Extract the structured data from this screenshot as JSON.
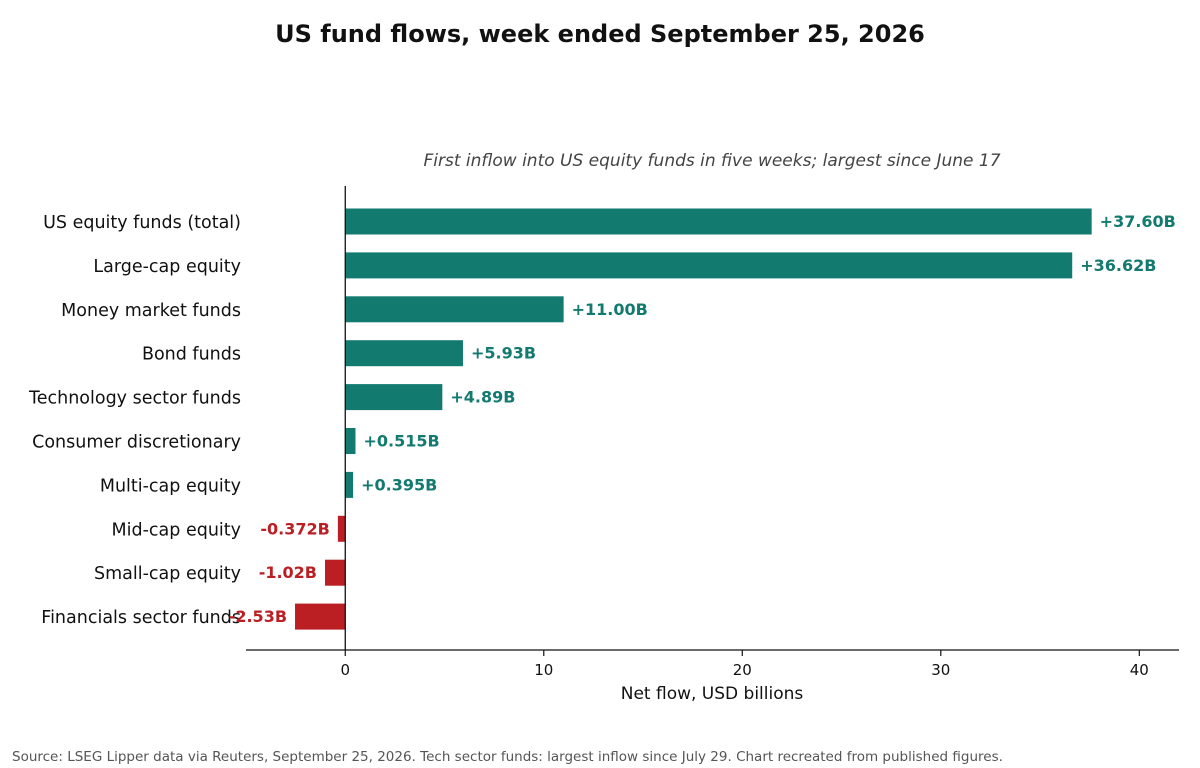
{
  "chart_data": {
    "type": "bar",
    "orientation": "horizontal",
    "title": "US fund flows, week ended September 25, 2026",
    "subtitle": "First inflow into US equity funds in five weeks; largest since June 17",
    "xlabel": "Net flow, USD billions",
    "ylabel": "",
    "xlim": [
      -5,
      42
    ],
    "xticks": [
      0,
      10,
      20,
      30,
      40
    ],
    "grid": false,
    "legend": "none",
    "categories": [
      "US equity funds (total)",
      "Large-cap equity",
      "Money market funds",
      "Bond funds",
      "Technology sector funds",
      "Consumer discretionary",
      "Multi-cap equity",
      "Mid-cap equity",
      "Small-cap equity",
      "Financials sector funds"
    ],
    "values": [
      37.6,
      36.62,
      11.0,
      5.93,
      4.89,
      0.515,
      0.395,
      -0.372,
      -1.02,
      -2.53
    ],
    "value_labels": [
      "+37.60B",
      "+36.62B",
      "+11.00B",
      "+5.93B",
      "+4.89B",
      "+0.515B",
      "+0.395B",
      "-0.372B",
      "-1.02B",
      "-2.53B"
    ],
    "colors": {
      "positive": "#137a6f",
      "negative": "#bb1e23",
      "axis": "#111111"
    },
    "source": "Source: LSEG Lipper data via Reuters, September 25, 2026. Tech sector funds: largest inflow since July 29. Chart recreated from published figures."
  }
}
